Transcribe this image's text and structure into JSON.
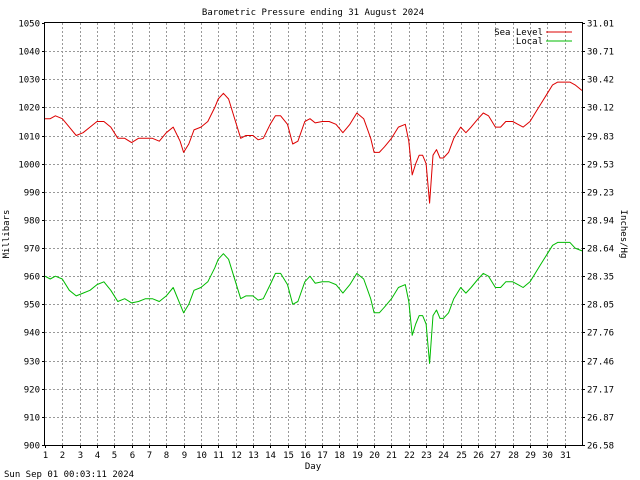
{
  "chart_data": {
    "type": "line",
    "title": "Barometric Pressure ending 31 August 2024",
    "xlabel": "Day",
    "ylabel_left": "Millibars",
    "ylabel_right": "Inches/Hg",
    "footer": "Sun Sep 01 00:03:11 2024",
    "xlim": [
      1,
      32
    ],
    "ylim": [
      900,
      1050
    ],
    "x_ticks": [
      "1",
      "2",
      "3",
      "4",
      "5",
      "6",
      "7",
      "8",
      "9",
      "10",
      "11",
      "12",
      "13",
      "14",
      "15",
      "16",
      "17",
      "18",
      "19",
      "20",
      "21",
      "22",
      "23",
      "24",
      "25",
      "26",
      "27",
      "28",
      "29",
      "30",
      "31"
    ],
    "y_ticks_left": [
      "900",
      "910",
      "920",
      "930",
      "940",
      "950",
      "960",
      "970",
      "980",
      "990",
      "1000",
      "1010",
      "1020",
      "1030",
      "1040",
      "1050"
    ],
    "y_ticks_right": [
      "26.58",
      "26.87",
      "27.17",
      "27.46",
      "27.76",
      "28.05",
      "28.35",
      "28.64",
      "28.94",
      "29.23",
      "29.53",
      "29.83",
      "30.12",
      "30.42",
      "30.71",
      "31.01"
    ],
    "grid": true,
    "legend_position": "top-right",
    "colors": {
      "sea_level": "#dd0000",
      "local": "#00bb00",
      "grid": "#999999",
      "axis": "#000000"
    },
    "x": [
      1,
      1.3,
      1.6,
      2,
      2.4,
      2.8,
      3.2,
      3.6,
      4,
      4.4,
      4.8,
      5.2,
      5.6,
      6,
      6.4,
      6.8,
      7.2,
      7.6,
      8,
      8.4,
      8.8,
      9,
      9.3,
      9.6,
      10,
      10.4,
      10.8,
      11,
      11.3,
      11.6,
      12,
      12.3,
      12.6,
      13,
      13.3,
      13.6,
      14,
      14.3,
      14.6,
      15,
      15.3,
      15.6,
      16,
      16.3,
      16.6,
      17,
      17.4,
      17.8,
      18.2,
      18.6,
      19,
      19.4,
      19.8,
      20,
      20.3,
      20.6,
      21,
      21.4,
      21.8,
      22,
      22.2,
      22.4,
      22.6,
      22.8,
      23,
      23.2,
      23.4,
      23.6,
      23.8,
      24,
      24.3,
      24.6,
      25,
      25.3,
      25.6,
      26,
      26.3,
      26.6,
      27,
      27.3,
      27.6,
      28,
      28.3,
      28.6,
      29,
      29.3,
      29.6,
      30,
      30.3,
      30.6,
      31,
      31.3,
      31.6,
      32
    ],
    "series": [
      {
        "name": "Sea Level",
        "values": [
          1016,
          1016,
          1017,
          1016,
          1013,
          1010,
          1011,
          1013,
          1015,
          1015,
          1013,
          1009,
          1009,
          1007.5,
          1009,
          1009,
          1009,
          1008,
          1011,
          1013,
          1008,
          1004,
          1007,
          1012,
          1013,
          1015,
          1020,
          1023,
          1025,
          1023,
          1015,
          1009,
          1010,
          1010,
          1008.5,
          1009,
          1014,
          1017,
          1017,
          1014,
          1007,
          1008,
          1015,
          1016,
          1014.5,
          1015,
          1015,
          1014,
          1011,
          1014,
          1018,
          1016,
          1009,
          1004,
          1004,
          1006,
          1009,
          1013,
          1014,
          1008,
          996,
          1000,
          1003,
          1003,
          1000,
          986,
          1003,
          1005,
          1002,
          1002,
          1004,
          1009,
          1013,
          1011,
          1013,
          1016,
          1018,
          1017,
          1013,
          1013,
          1015,
          1015,
          1014,
          1013,
          1015,
          1018,
          1021,
          1025,
          1028,
          1029,
          1029,
          1029,
          1028,
          1026
        ]
      },
      {
        "name": "Local",
        "values": [
          960,
          959,
          960,
          959,
          955,
          953,
          954,
          955,
          957,
          958,
          955,
          951,
          952,
          950.5,
          951,
          952,
          952,
          951,
          953,
          956,
          950,
          947,
          950,
          955,
          956,
          958,
          963,
          966,
          968,
          966,
          958,
          952,
          953,
          953,
          951.5,
          952,
          957,
          961,
          961,
          957,
          950,
          951,
          958,
          960,
          957.5,
          958,
          958,
          957,
          954,
          957,
          961,
          959,
          952,
          947,
          947,
          949,
          952,
          956,
          957,
          951,
          939,
          943,
          946,
          946,
          943,
          929,
          946,
          948,
          945,
          945,
          947,
          952,
          956,
          954,
          956,
          959,
          961,
          960,
          956,
          956,
          958,
          958,
          957,
          956,
          958,
          961,
          964,
          968,
          971,
          972,
          972,
          972,
          970,
          969
        ]
      }
    ]
  }
}
